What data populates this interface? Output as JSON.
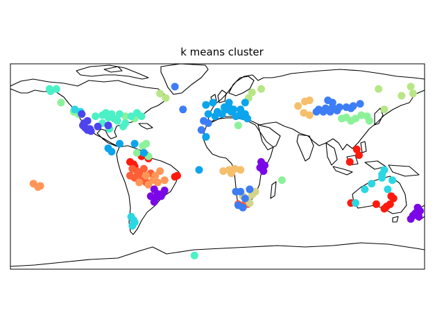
{
  "title": "k means cluster",
  "map": {
    "projection": "equirectangular",
    "lon_range": [
      -180,
      180
    ],
    "lat_range": [
      -90,
      90
    ],
    "coastline_color": "#000000",
    "frame_color": "#000000"
  },
  "clusters": [
    {
      "id": "red",
      "color": "#ff1a0d",
      "points": [
        [
          -73,
          2
        ],
        [
          -76,
          4
        ],
        [
          -72,
          0
        ],
        [
          -62,
          10
        ],
        [
          -66,
          9
        ],
        [
          -60,
          7
        ],
        [
          -37,
          -9
        ],
        [
          -35,
          -8
        ],
        [
          121,
          15
        ],
        [
          123,
          10
        ],
        [
          115,
          4
        ],
        [
          147,
          -35
        ],
        [
          150,
          -33
        ],
        [
          153,
          -28
        ],
        [
          138,
          -33
        ],
        [
          145,
          -37
        ],
        [
          116,
          -32
        ],
        [
          151,
          -26
        ]
      ]
    },
    {
      "id": "orange-red",
      "color": "#ff5e37",
      "points": [
        [
          -74,
          -2
        ],
        [
          -70,
          -4
        ],
        [
          -76,
          -8
        ],
        [
          -72,
          -10
        ],
        [
          -66,
          -12
        ],
        [
          -62,
          -14
        ],
        [
          -58,
          -6
        ],
        [
          -64,
          -2
        ],
        [
          -68,
          -6
        ],
        [
          18,
          -33
        ],
        [
          22,
          -34
        ],
        [
          26,
          -33
        ]
      ]
    },
    {
      "id": "orange",
      "color": "#ff9657",
      "points": [
        [
          -160,
          -15
        ],
        [
          -156,
          -18
        ],
        [
          -154,
          -17
        ],
        [
          -60,
          -16
        ],
        [
          -56,
          -12
        ],
        [
          -54,
          -8
        ],
        [
          -50,
          -4
        ],
        [
          -52,
          -14
        ],
        [
          -62,
          -8
        ],
        [
          -68,
          -14
        ],
        [
          -46,
          -12
        ]
      ]
    },
    {
      "id": "light-orange",
      "color": "#f6bf6c",
      "points": [
        [
          5,
          -4
        ],
        [
          10,
          -3
        ],
        [
          15,
          -2
        ],
        [
          12,
          -6
        ],
        [
          20,
          -3
        ],
        [
          70,
          53
        ],
        [
          76,
          57
        ],
        [
          75,
          47
        ],
        [
          80,
          45
        ],
        [
          80,
          58
        ]
      ]
    },
    {
      "id": "khaki",
      "color": "#d4d48a",
      "points": [
        [
          22,
          -26
        ],
        [
          26,
          -29
        ],
        [
          30,
          -25
        ],
        [
          28,
          -32
        ],
        [
          33,
          -22
        ]
      ]
    },
    {
      "id": "yellow-green",
      "color": "#b8e686",
      "points": [
        [
          -45,
          60
        ],
        [
          -50,
          64
        ],
        [
          30,
          65
        ],
        [
          27,
          60
        ],
        [
          38,
          68
        ],
        [
          140,
          68
        ],
        [
          160,
          62
        ],
        [
          170,
          64
        ],
        [
          145,
          50
        ],
        [
          168,
          70
        ]
      ]
    },
    {
      "id": "light-green",
      "color": "#8cf29a",
      "points": [
        [
          -136,
          56
        ],
        [
          -125,
          48
        ],
        [
          -121,
          46
        ],
        [
          -70,
          12
        ],
        [
          -65,
          18
        ],
        [
          -80,
          44
        ],
        [
          -72,
          42
        ],
        [
          -62,
          20
        ],
        [
          -60,
          9
        ],
        [
          6,
          50
        ],
        [
          18,
          36
        ],
        [
          56,
          -12
        ],
        [
          108,
          42
        ],
        [
          112,
          43
        ],
        [
          120,
          42
        ],
        [
          125,
          45
        ],
        [
          130,
          44
        ],
        [
          116,
          40
        ],
        [
          132,
          40
        ]
      ]
    },
    {
      "id": "aquamarine",
      "color": "#4bf0c6",
      "points": [
        [
          -146,
          68
        ],
        [
          -145,
          66
        ],
        [
          -140,
          68
        ],
        [
          -85,
          46
        ],
        [
          -75,
          44
        ],
        [
          -80,
          38
        ],
        [
          -90,
          42
        ],
        [
          -97,
          47
        ],
        [
          -100,
          45
        ],
        [
          -106,
          44
        ],
        [
          -92,
          46
        ],
        [
          -87,
          40
        ],
        [
          -70,
          47
        ],
        [
          -95,
          43
        ],
        [
          -66,
          44
        ],
        [
          -100,
          38
        ],
        [
          -94,
          33
        ],
        [
          -82,
          35
        ],
        [
          -20,
          -78
        ]
      ]
    },
    {
      "id": "turquoise",
      "color": "#2ad7e2",
      "points": [
        [
          -124,
          50
        ],
        [
          -119,
          48
        ],
        [
          -75,
          -44
        ],
        [
          -73,
          -47
        ],
        [
          -74,
          -52
        ],
        [
          -72,
          -49
        ],
        [
          145,
          -3
        ],
        [
          143,
          -7
        ],
        [
          134,
          -15
        ],
        [
          128,
          -20
        ],
        [
          143,
          -10
        ],
        [
          152,
          -12
        ],
        [
          120,
          -32
        ],
        [
          148,
          -20
        ]
      ]
    },
    {
      "id": "sky-blue",
      "color": "#0ca4ec",
      "points": [
        [
          -85,
          20
        ],
        [
          -92,
          13
        ],
        [
          -95,
          16
        ],
        [
          -72,
          20
        ],
        [
          -64,
          12
        ],
        [
          -2,
          44
        ],
        [
          0,
          48
        ],
        [
          4,
          46
        ],
        [
          8,
          50
        ],
        [
          12,
          48
        ],
        [
          16,
          44
        ],
        [
          20,
          50
        ],
        [
          22,
          44
        ],
        [
          24,
          46
        ],
        [
          26,
          42
        ],
        [
          14,
          50
        ],
        [
          6,
          52
        ],
        [
          24,
          56
        ],
        [
          10,
          56
        ],
        [
          -10,
          26
        ],
        [
          -10,
          54
        ],
        [
          -4,
          56
        ],
        [
          10,
          52
        ],
        [
          20,
          46
        ],
        [
          -8,
          46
        ],
        [
          -16,
          -3
        ]
      ]
    },
    {
      "id": "blue",
      "color": "#3d7df5",
      "points": [
        [
          -37,
          70
        ],
        [
          -30,
          50
        ],
        [
          -12,
          40
        ],
        [
          -8,
          38
        ],
        [
          -14,
          32
        ],
        [
          22,
          -36
        ],
        [
          18,
          -34
        ],
        [
          20,
          -22
        ],
        [
          24,
          -28
        ],
        [
          28,
          -20
        ],
        [
          16,
          -22
        ],
        [
          100,
          56
        ],
        [
          112,
          52
        ],
        [
          106,
          52
        ],
        [
          94,
          51
        ],
        [
          100,
          52
        ],
        [
          86,
          48
        ],
        [
          88,
          50
        ],
        [
          92,
          48
        ],
        [
          98,
          48
        ],
        [
          104,
          49
        ],
        [
          116,
          51
        ],
        [
          118,
          53
        ],
        [
          124,
          55
        ],
        [
          96,
          58
        ]
      ]
    },
    {
      "id": "indigo",
      "color": "#4d44ef",
      "points": [
        [
          -117,
          36
        ],
        [
          -115,
          34
        ],
        [
          -113,
          32
        ],
        [
          -110,
          31
        ],
        [
          -116,
          38
        ],
        [
          -111,
          33
        ],
        [
          -104,
          35
        ],
        [
          -113,
          40
        ],
        [
          -118,
          46
        ],
        [
          -95,
          36
        ]
      ]
    },
    {
      "id": "violet",
      "color": "#7b07e8",
      "points": [
        [
          -55,
          -20
        ],
        [
          -52,
          -24
        ],
        [
          -49,
          -26
        ],
        [
          -53,
          -27
        ],
        [
          -58,
          -26
        ],
        [
          -46,
          -21
        ],
        [
          -48,
          -24
        ],
        [
          -55,
          -31
        ],
        [
          38,
          4
        ],
        [
          39,
          -2
        ],
        [
          41,
          1
        ],
        [
          37,
          -1
        ],
        [
          40,
          -4
        ],
        [
          170,
          -43
        ],
        [
          174,
          -36
        ],
        [
          176,
          -39
        ],
        [
          168,
          -46
        ],
        [
          172,
          -41
        ],
        [
          175,
          -44
        ]
      ]
    }
  ]
}
